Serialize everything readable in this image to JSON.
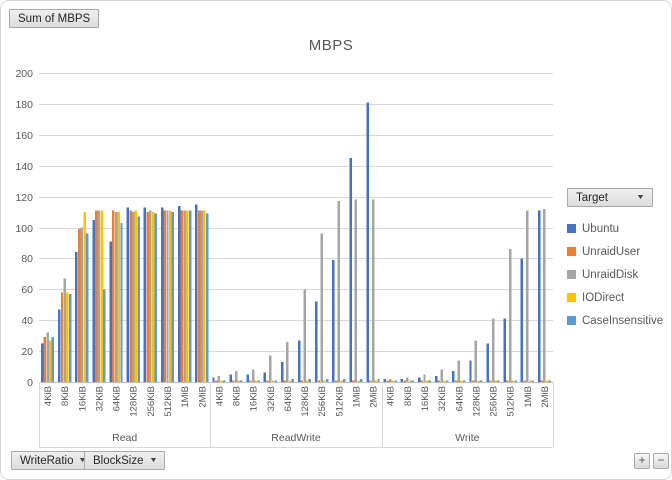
{
  "title": "MBPS",
  "field_buttons": {
    "value_field": "Sum of MBPS",
    "axis_fields": [
      {
        "label": "WriteRatio"
      },
      {
        "label": "BlockSize"
      }
    ],
    "legend_field": "Target"
  },
  "icons": {
    "dropdown_arrow": "▼"
  },
  "expand_collapse": {
    "expand_label": "+",
    "collapse_label": "−"
  },
  "legend": {
    "button_label": "Target",
    "items": [
      {
        "label": "Ubuntu",
        "color": "#4472C4"
      },
      {
        "label": "UnraidUser",
        "color": "#ED7D31"
      },
      {
        "label": "UnraidDisk",
        "color": "#A5A5A5"
      },
      {
        "label": "IODirect",
        "color": "#FFC000"
      },
      {
        "label": "CaseInsensitive",
        "color": "#5B9BD5"
      }
    ]
  },
  "chart_data": {
    "type": "bar",
    "title": "MBPS",
    "value_field": "Sum of MBPS",
    "ylabel": "",
    "xlabel": "",
    "ylim": [
      0,
      200
    ],
    "ytick_step": 20,
    "grid": true,
    "legend_position": "right",
    "groups": [
      "Read",
      "ReadWrite",
      "Write"
    ],
    "categories": [
      "4KiB",
      "8KiB",
      "16KiB",
      "32KiB",
      "64KiB",
      "128KiB",
      "256KiB",
      "512KiB",
      "1MiB",
      "2MiB"
    ],
    "series": [
      {
        "name": "Ubuntu",
        "color": "#4472C4",
        "values": {
          "Read": [
            25,
            47,
            84,
            105,
            91,
            113,
            113,
            113,
            114,
            115
          ],
          "ReadWrite": [
            3,
            5,
            5,
            6,
            13,
            27,
            52,
            79,
            145,
            181
          ],
          "Write": [
            2,
            2,
            3,
            4,
            7,
            14,
            25,
            41,
            80,
            111
          ]
        }
      },
      {
        "name": "UnraidUser",
        "color": "#ED7D31",
        "values": {
          "Read": [
            29,
            58,
            99,
            111,
            111,
            111,
            110,
            111,
            111,
            111
          ],
          "ReadWrite": [
            1,
            1,
            1,
            1,
            1,
            1,
            1,
            1,
            1,
            1
          ],
          "Write": [
            1,
            1,
            1,
            1,
            1,
            1,
            1,
            1,
            1,
            1
          ]
        }
      },
      {
        "name": "UnraidDisk",
        "color": "#A5A5A5",
        "values": {
          "Read": [
            32,
            67,
            100,
            111,
            110,
            110,
            111,
            111,
            111,
            111
          ],
          "ReadWrite": [
            4,
            7,
            8,
            17,
            26,
            60,
            96,
            117,
            118,
            118
          ],
          "Write": [
            2,
            3,
            5,
            8,
            14,
            27,
            41,
            86,
            111,
            112
          ]
        }
      },
      {
        "name": "IODirect",
        "color": "#FFC000",
        "values": {
          "Read": [
            27,
            58,
            110,
            111,
            110,
            111,
            110,
            111,
            111,
            111
          ],
          "ReadWrite": [
            1,
            1,
            1,
            1,
            1,
            1,
            1,
            1,
            1,
            1
          ],
          "Write": [
            1,
            1,
            1,
            1,
            1,
            1,
            1,
            1,
            1,
            1
          ]
        }
      },
      {
        "name": "CaseInsensitive",
        "color": "#5B9BD5",
        "values": {
          "Read": [
            29,
            57,
            96,
            60,
            103,
            107,
            109,
            110,
            111,
            109
          ],
          "ReadWrite": [
            1,
            1,
            1,
            1,
            2,
            2,
            2,
            2,
            2,
            2
          ],
          "Write": [
            1,
            1,
            1,
            1,
            1,
            1,
            1,
            1,
            1,
            1
          ]
        }
      }
    ]
  }
}
